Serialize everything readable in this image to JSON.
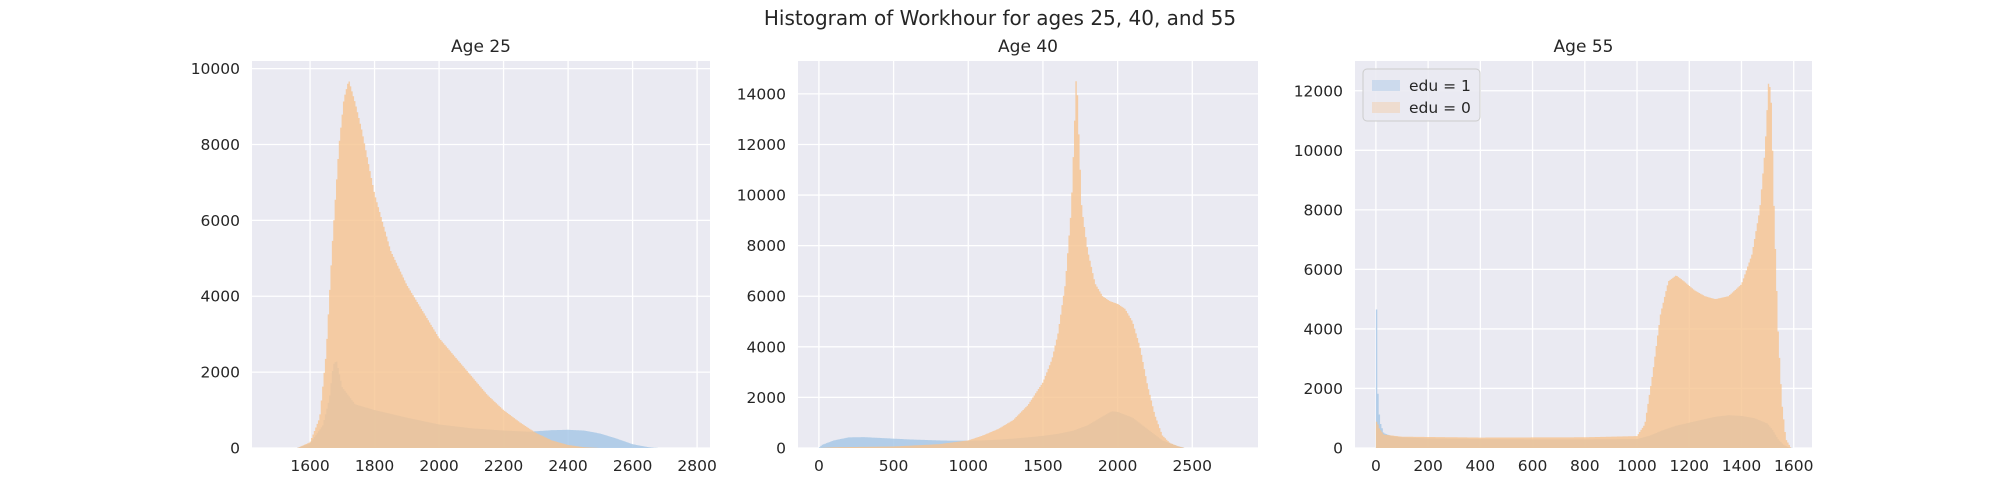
{
  "figure": {
    "title": "Histogram of Workhour for ages 25, 40, and 55"
  },
  "colors": {
    "edu1": "#a8c8e6",
    "edu0": "#f6c38f",
    "panel_bg": "#eaeaf2",
    "grid": "#ffffff"
  },
  "chart_data": [
    {
      "type": "histogram",
      "title": "Age 25",
      "xlim": [
        1420,
        2840
      ],
      "ylim": [
        0,
        10200
      ],
      "xticks": [
        1600,
        1800,
        2000,
        2200,
        2400,
        2600,
        2800
      ],
      "yticks": [
        0,
        2000,
        4000,
        6000,
        8000,
        10000
      ],
      "grid": true,
      "series": [
        {
          "key": "edu1",
          "values": [
            [
              1560,
              0
            ],
            [
              1600,
              120
            ],
            [
              1640,
              600
            ],
            [
              1660,
              1300
            ],
            [
              1672,
              2200
            ],
            [
              1682,
              2300
            ],
            [
              1700,
              1600
            ],
            [
              1740,
              1150
            ],
            [
              1800,
              1000
            ],
            [
              1900,
              800
            ],
            [
              2000,
              620
            ],
            [
              2100,
              520
            ],
            [
              2200,
              460
            ],
            [
              2280,
              430
            ],
            [
              2350,
              470
            ],
            [
              2400,
              480
            ],
            [
              2450,
              460
            ],
            [
              2500,
              380
            ],
            [
              2550,
              250
            ],
            [
              2600,
              100
            ],
            [
              2650,
              20
            ],
            [
              2680,
              0
            ]
          ]
        },
        {
          "key": "edu0",
          "values": [
            [
              1560,
              0
            ],
            [
              1600,
              150
            ],
            [
              1630,
              800
            ],
            [
              1650,
              2500
            ],
            [
              1670,
              5500
            ],
            [
              1690,
              8000
            ],
            [
              1705,
              9200
            ],
            [
              1720,
              9700
            ],
            [
              1740,
              9100
            ],
            [
              1760,
              8400
            ],
            [
              1800,
              6700
            ],
            [
              1850,
              5200
            ],
            [
              1900,
              4300
            ],
            [
              1950,
              3600
            ],
            [
              2000,
              2900
            ],
            [
              2050,
              2400
            ],
            [
              2100,
              1900
            ],
            [
              2150,
              1400
            ],
            [
              2200,
              1000
            ],
            [
              2250,
              680
            ],
            [
              2300,
              400
            ],
            [
              2350,
              200
            ],
            [
              2400,
              80
            ],
            [
              2450,
              20
            ],
            [
              2500,
              0
            ]
          ]
        }
      ]
    },
    {
      "type": "histogram",
      "title": "Age 40",
      "xlim": [
        -140,
        2940
      ],
      "ylim": [
        0,
        15300
      ],
      "xticks": [
        0,
        500,
        1000,
        1500,
        2000,
        2500
      ],
      "yticks": [
        0,
        2000,
        4000,
        6000,
        8000,
        10000,
        12000,
        14000
      ],
      "grid": true,
      "series": [
        {
          "key": "edu1",
          "values": [
            [
              0,
              0
            ],
            [
              20,
              120
            ],
            [
              100,
              300
            ],
            [
              200,
              420
            ],
            [
              300,
              430
            ],
            [
              400,
              400
            ],
            [
              500,
              370
            ],
            [
              600,
              340
            ],
            [
              700,
              320
            ],
            [
              800,
              300
            ],
            [
              900,
              290
            ],
            [
              1000,
              290
            ],
            [
              1100,
              300
            ],
            [
              1200,
              330
            ],
            [
              1300,
              370
            ],
            [
              1400,
              420
            ],
            [
              1500,
              480
            ],
            [
              1600,
              560
            ],
            [
              1700,
              680
            ],
            [
              1800,
              900
            ],
            [
              1900,
              1250
            ],
            [
              1960,
              1450
            ],
            [
              2000,
              1430
            ],
            [
              2100,
              1200
            ],
            [
              2200,
              750
            ],
            [
              2300,
              300
            ],
            [
              2400,
              80
            ],
            [
              2450,
              0
            ]
          ]
        },
        {
          "key": "edu0",
          "values": [
            [
              0,
              0
            ],
            [
              100,
              30
            ],
            [
              500,
              60
            ],
            [
              800,
              150
            ],
            [
              1000,
              300
            ],
            [
              1100,
              500
            ],
            [
              1200,
              750
            ],
            [
              1300,
              1100
            ],
            [
              1400,
              1700
            ],
            [
              1500,
              2600
            ],
            [
              1560,
              3500
            ],
            [
              1600,
              4500
            ],
            [
              1650,
              6500
            ],
            [
              1690,
              9500
            ],
            [
              1710,
              12500
            ],
            [
              1725,
              15000
            ],
            [
              1740,
              12500
            ],
            [
              1760,
              9500
            ],
            [
              1800,
              7800
            ],
            [
              1850,
              6500
            ],
            [
              1900,
              6000
            ],
            [
              1950,
              5800
            ],
            [
              2000,
              5700
            ],
            [
              2050,
              5500
            ],
            [
              2100,
              5000
            ],
            [
              2150,
              4000
            ],
            [
              2200,
              2500
            ],
            [
              2250,
              1300
            ],
            [
              2300,
              500
            ],
            [
              2350,
              200
            ],
            [
              2400,
              80
            ],
            [
              2450,
              0
            ]
          ]
        }
      ]
    },
    {
      "type": "histogram",
      "title": "Age 55",
      "xlim": [
        -80,
        1670
      ],
      "ylim": [
        0,
        13000
      ],
      "xticks": [
        0,
        200,
        400,
        600,
        800,
        1000,
        1200,
        1400,
        1600
      ],
      "yticks": [
        0,
        2000,
        4000,
        6000,
        8000,
        10000,
        12000
      ],
      "grid": true,
      "legend": {
        "placement": "top-left",
        "entries": [
          {
            "key": "edu1",
            "label": "edu = 1"
          },
          {
            "key": "edu0",
            "label": "edu = 0"
          }
        ]
      },
      "series": [
        {
          "key": "edu1",
          "values": [
            [
              0,
              0
            ],
            [
              2,
              5000
            ],
            [
              8,
              1800
            ],
            [
              15,
              900
            ],
            [
              30,
              500
            ],
            [
              60,
              400
            ],
            [
              100,
              360
            ],
            [
              200,
              320
            ],
            [
              400,
              300
            ],
            [
              600,
              290
            ],
            [
              800,
              290
            ],
            [
              1000,
              300
            ],
            [
              1050,
              420
            ],
            [
              1100,
              600
            ],
            [
              1150,
              750
            ],
            [
              1200,
              850
            ],
            [
              1250,
              950
            ],
            [
              1300,
              1050
            ],
            [
              1350,
              1100
            ],
            [
              1400,
              1080
            ],
            [
              1450,
              1000
            ],
            [
              1500,
              820
            ],
            [
              1520,
              600
            ],
            [
              1540,
              300
            ],
            [
              1560,
              120
            ],
            [
              1580,
              20
            ],
            [
              1600,
              0
            ]
          ]
        },
        {
          "key": "edu0",
          "values": [
            [
              0,
              0
            ],
            [
              3,
              1000
            ],
            [
              10,
              700
            ],
            [
              30,
              450
            ],
            [
              100,
              380
            ],
            [
              400,
              350
            ],
            [
              800,
              360
            ],
            [
              1000,
              400
            ],
            [
              1030,
              800
            ],
            [
              1060,
              2500
            ],
            [
              1090,
              4500
            ],
            [
              1120,
              5600
            ],
            [
              1150,
              5800
            ],
            [
              1180,
              5600
            ],
            [
              1220,
              5300
            ],
            [
              1260,
              5100
            ],
            [
              1300,
              5000
            ],
            [
              1350,
              5100
            ],
            [
              1400,
              5500
            ],
            [
              1440,
              6500
            ],
            [
              1470,
              8000
            ],
            [
              1490,
              10000
            ],
            [
              1505,
              12500
            ],
            [
              1515,
              11500
            ],
            [
              1525,
              8000
            ],
            [
              1540,
              4000
            ],
            [
              1555,
              1500
            ],
            [
              1570,
              300
            ],
            [
              1590,
              0
            ]
          ]
        }
      ]
    }
  ]
}
